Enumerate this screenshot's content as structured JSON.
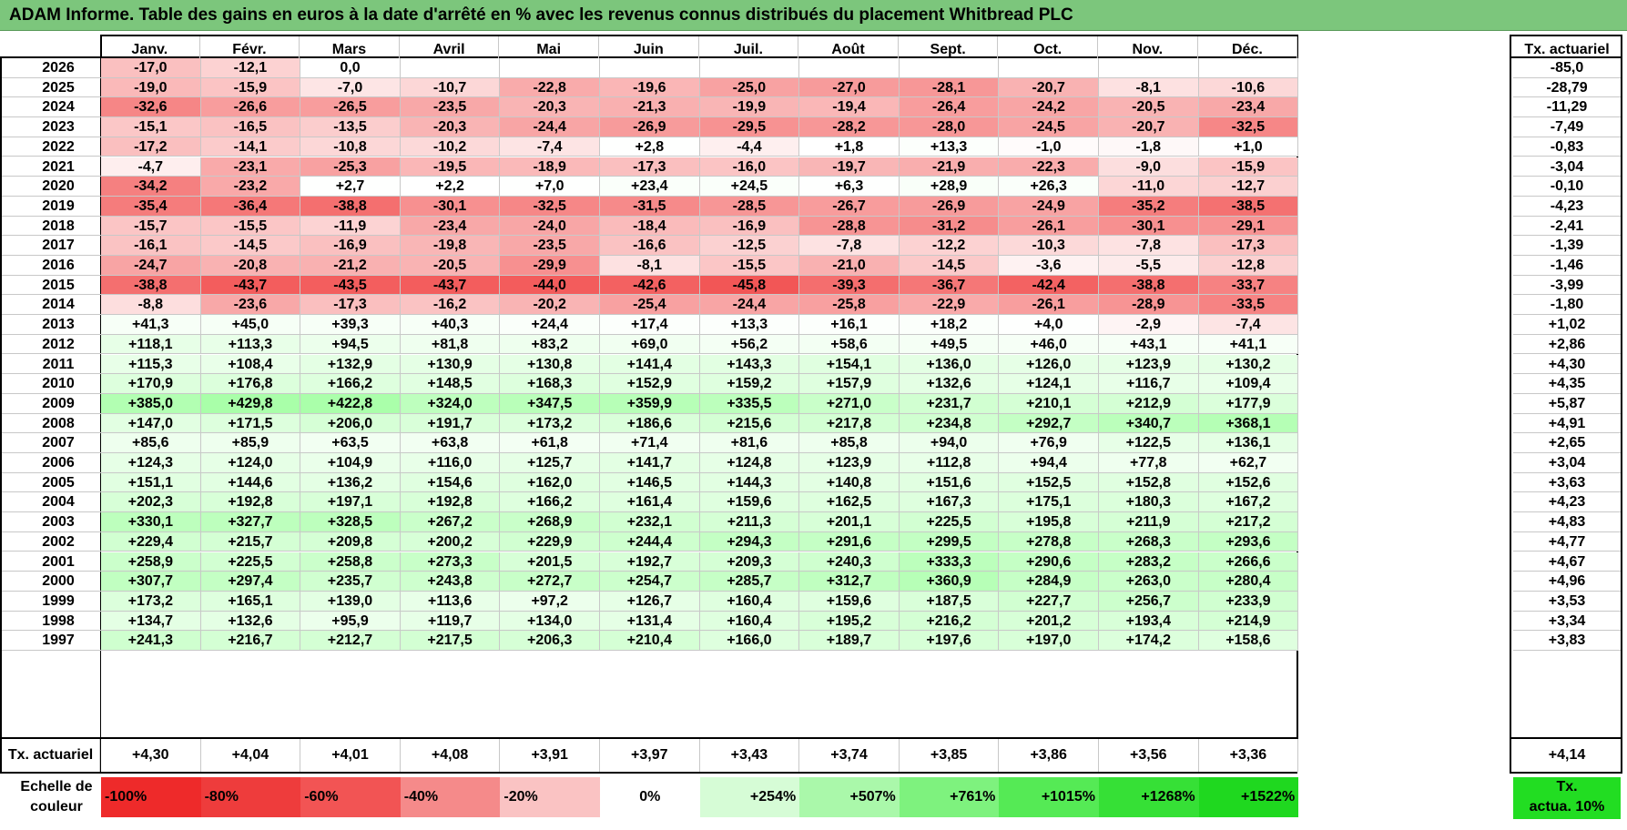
{
  "title": "ADAM Informe. Table des gains en euros à la date d'arrêté en % avec les revenus connus distribués du placement Whitbread PLC",
  "months": [
    "Janv.",
    "Févr.",
    "Mars",
    "Avril",
    "Mai",
    "Juin",
    "Juil.",
    "Août",
    "Sept.",
    "Oct.",
    "Nov.",
    "Déc."
  ],
  "tx_header": "Tx. actuariel",
  "rows": [
    {
      "year": "2026",
      "v": [
        "-17,0",
        "-12,1",
        "0,0",
        "",
        "",
        "",
        "",
        "",
        "",
        "",
        "",
        ""
      ],
      "tx": "-85,0"
    },
    {
      "year": "2025",
      "v": [
        "-19,0",
        "-15,9",
        "-7,0",
        "-10,7",
        "-22,8",
        "-19,6",
        "-25,0",
        "-27,0",
        "-28,1",
        "-20,7",
        "-8,1",
        "-10,6"
      ],
      "tx": "-28,79"
    },
    {
      "year": "2024",
      "v": [
        "-32,6",
        "-26,6",
        "-26,5",
        "-23,5",
        "-20,3",
        "-21,3",
        "-19,9",
        "-19,4",
        "-26,4",
        "-24,2",
        "-20,5",
        "-23,4"
      ],
      "tx": "-11,29"
    },
    {
      "year": "2023",
      "v": [
        "-15,1",
        "-16,5",
        "-13,5",
        "-20,3",
        "-24,4",
        "-26,9",
        "-29,5",
        "-28,2",
        "-28,0",
        "-24,5",
        "-20,7",
        "-32,5"
      ],
      "tx": "-7,49"
    },
    {
      "year": "2022",
      "v": [
        "-17,2",
        "-14,1",
        "-10,8",
        "-10,2",
        "-7,4",
        "+2,8",
        "-4,4",
        "+1,8",
        "+13,3",
        "-1,0",
        "-1,8",
        "+1,0"
      ],
      "tx": "-0,83"
    },
    {
      "year": "2021",
      "v": [
        "-4,7",
        "-23,1",
        "-25,3",
        "-19,5",
        "-18,9",
        "-17,3",
        "-16,0",
        "-19,7",
        "-21,9",
        "-22,3",
        "-9,0",
        "-15,9"
      ],
      "tx": "-3,04"
    },
    {
      "year": "2020",
      "v": [
        "-34,2",
        "-23,2",
        "+2,7",
        "+2,2",
        "+7,0",
        "+23,4",
        "+24,5",
        "+6,3",
        "+28,9",
        "+26,3",
        "-11,0",
        "-12,7"
      ],
      "tx": "-0,10"
    },
    {
      "year": "2019",
      "v": [
        "-35,4",
        "-36,4",
        "-38,8",
        "-30,1",
        "-32,5",
        "-31,5",
        "-28,5",
        "-26,7",
        "-26,9",
        "-24,9",
        "-35,2",
        "-38,5"
      ],
      "tx": "-4,23"
    },
    {
      "year": "2018",
      "v": [
        "-15,7",
        "-15,5",
        "-11,9",
        "-23,4",
        "-24,0",
        "-18,4",
        "-16,9",
        "-28,8",
        "-31,2",
        "-26,1",
        "-30,1",
        "-29,1"
      ],
      "tx": "-2,41"
    },
    {
      "year": "2017",
      "v": [
        "-16,1",
        "-14,5",
        "-16,9",
        "-19,8",
        "-23,5",
        "-16,6",
        "-12,5",
        "-7,8",
        "-12,2",
        "-10,3",
        "-7,8",
        "-17,3"
      ],
      "tx": "-1,39"
    },
    {
      "year": "2016",
      "v": [
        "-24,7",
        "-20,8",
        "-21,2",
        "-20,5",
        "-29,9",
        "-8,1",
        "-15,5",
        "-21,0",
        "-14,5",
        "-3,6",
        "-5,5",
        "-12,8"
      ],
      "tx": "-1,46"
    },
    {
      "year": "2015",
      "v": [
        "-38,8",
        "-43,7",
        "-43,5",
        "-43,7",
        "-44,0",
        "-42,6",
        "-45,8",
        "-39,3",
        "-36,7",
        "-42,4",
        "-38,8",
        "-33,7"
      ],
      "tx": "-3,99"
    },
    {
      "year": "2014",
      "v": [
        "-8,8",
        "-23,6",
        "-17,3",
        "-16,2",
        "-20,2",
        "-25,4",
        "-24,4",
        "-25,8",
        "-22,9",
        "-26,1",
        "-28,9",
        "-33,5"
      ],
      "tx": "-1,80"
    },
    {
      "year": "2013",
      "v": [
        "+41,3",
        "+45,0",
        "+39,3",
        "+40,3",
        "+24,4",
        "+17,4",
        "+13,3",
        "+16,1",
        "+18,2",
        "+4,0",
        "-2,9",
        "-7,4"
      ],
      "tx": "+1,02"
    },
    {
      "year": "2012",
      "v": [
        "+118,1",
        "+113,3",
        "+94,5",
        "+81,8",
        "+83,2",
        "+69,0",
        "+56,2",
        "+58,6",
        "+49,5",
        "+46,0",
        "+43,1",
        "+41,1"
      ],
      "tx": "+2,86"
    },
    {
      "year": "2011",
      "v": [
        "+115,3",
        "+108,4",
        "+132,9",
        "+130,9",
        "+130,8",
        "+141,4",
        "+143,3",
        "+154,1",
        "+136,0",
        "+126,0",
        "+123,9",
        "+130,2"
      ],
      "tx": "+4,30"
    },
    {
      "year": "2010",
      "v": [
        "+170,9",
        "+176,8",
        "+166,2",
        "+148,5",
        "+168,3",
        "+152,9",
        "+159,2",
        "+157,9",
        "+132,6",
        "+124,1",
        "+116,7",
        "+109,4"
      ],
      "tx": "+4,35"
    },
    {
      "year": "2009",
      "v": [
        "+385,0",
        "+429,8",
        "+422,8",
        "+324,0",
        "+347,5",
        "+359,9",
        "+335,5",
        "+271,0",
        "+231,7",
        "+210,1",
        "+212,9",
        "+177,9"
      ],
      "tx": "+5,87"
    },
    {
      "year": "2008",
      "v": [
        "+147,0",
        "+171,5",
        "+206,0",
        "+191,7",
        "+173,2",
        "+186,6",
        "+215,6",
        "+217,8",
        "+234,8",
        "+292,7",
        "+340,7",
        "+368,1"
      ],
      "tx": "+4,91"
    },
    {
      "year": "2007",
      "v": [
        "+85,6",
        "+85,9",
        "+63,5",
        "+63,8",
        "+61,8",
        "+71,4",
        "+81,6",
        "+85,8",
        "+94,0",
        "+76,9",
        "+122,5",
        "+136,1"
      ],
      "tx": "+2,65"
    },
    {
      "year": "2006",
      "v": [
        "+124,3",
        "+124,0",
        "+104,9",
        "+116,0",
        "+125,7",
        "+141,7",
        "+124,8",
        "+123,9",
        "+112,8",
        "+94,4",
        "+77,8",
        "+62,7"
      ],
      "tx": "+3,04"
    },
    {
      "year": "2005",
      "v": [
        "+151,1",
        "+144,6",
        "+136,2",
        "+154,6",
        "+162,0",
        "+146,5",
        "+144,3",
        "+140,8",
        "+151,6",
        "+152,5",
        "+152,8",
        "+152,6"
      ],
      "tx": "+3,63"
    },
    {
      "year": "2004",
      "v": [
        "+202,3",
        "+192,8",
        "+197,1",
        "+192,8",
        "+166,2",
        "+161,4",
        "+159,6",
        "+162,5",
        "+167,3",
        "+175,1",
        "+180,3",
        "+167,2"
      ],
      "tx": "+4,23"
    },
    {
      "year": "2003",
      "v": [
        "+330,1",
        "+327,7",
        "+328,5",
        "+267,2",
        "+268,9",
        "+232,1",
        "+211,3",
        "+201,1",
        "+225,5",
        "+195,8",
        "+211,9",
        "+217,2"
      ],
      "tx": "+4,83"
    },
    {
      "year": "2002",
      "v": [
        "+229,4",
        "+215,7",
        "+209,8",
        "+200,2",
        "+229,9",
        "+244,4",
        "+294,3",
        "+291,6",
        "+299,5",
        "+278,8",
        "+268,3",
        "+293,6"
      ],
      "tx": "+4,77"
    },
    {
      "year": "2001",
      "v": [
        "+258,9",
        "+225,5",
        "+258,8",
        "+273,3",
        "+201,5",
        "+192,7",
        "+209,3",
        "+240,3",
        "+333,3",
        "+290,6",
        "+283,2",
        "+266,6"
      ],
      "tx": "+4,67"
    },
    {
      "year": "2000",
      "v": [
        "+307,7",
        "+297,4",
        "+235,7",
        "+243,8",
        "+272,7",
        "+254,7",
        "+285,7",
        "+312,7",
        "+360,9",
        "+284,9",
        "+263,0",
        "+280,4"
      ],
      "tx": "+4,96"
    },
    {
      "year": "1999",
      "v": [
        "+173,2",
        "+165,1",
        "+139,0",
        "+113,6",
        "+97,2",
        "+126,7",
        "+160,4",
        "+159,6",
        "+187,5",
        "+227,7",
        "+256,7",
        "+233,9"
      ],
      "tx": "+3,53"
    },
    {
      "year": "1998",
      "v": [
        "+134,7",
        "+132,6",
        "+95,9",
        "+119,7",
        "+134,0",
        "+131,4",
        "+160,4",
        "+195,2",
        "+216,2",
        "+201,2",
        "+193,4",
        "+214,9"
      ],
      "tx": "+3,34"
    },
    {
      "year": "1997",
      "v": [
        "+241,3",
        "+216,7",
        "+212,7",
        "+217,5",
        "+206,3",
        "+210,4",
        "+166,0",
        "+189,7",
        "+197,6",
        "+197,0",
        "+174,2",
        "+158,6"
      ],
      "tx": "+3,83"
    }
  ],
  "footer": {
    "label": "Tx. actuariel",
    "values": [
      "+4,30",
      "+4,04",
      "+4,01",
      "+4,08",
      "+3,91",
      "+3,97",
      "+3,43",
      "+3,74",
      "+3,85",
      "+3,86",
      "+3,56",
      "+3,36"
    ],
    "tx": "+4,14"
  },
  "scale": {
    "label_line1": "Echelle de",
    "label_line2": "couleur",
    "items": [
      {
        "text": "-100%",
        "color": "#ee2a2a",
        "kind": "neg"
      },
      {
        "text": "-80%",
        "color": "#ee3c3c",
        "kind": "neg"
      },
      {
        "text": "-60%",
        "color": "#f25454",
        "kind": "neg"
      },
      {
        "text": "-40%",
        "color": "#f58a8a",
        "kind": "neg"
      },
      {
        "text": "-20%",
        "color": "#fac3c3",
        "kind": "neg"
      },
      {
        "text": "0%",
        "color": "#ffffff",
        "kind": "zero"
      },
      {
        "text": "+254%",
        "color": "#d6fcd6",
        "kind": "pos"
      },
      {
        "text": "+507%",
        "color": "#aaf8aa",
        "kind": "pos"
      },
      {
        "text": "+761%",
        "color": "#7ef27e",
        "kind": "pos"
      },
      {
        "text": "+1015%",
        "color": "#55ea55",
        "kind": "pos"
      },
      {
        "text": "+1268%",
        "color": "#36e036",
        "kind": "pos"
      },
      {
        "text": "+1522%",
        "color": "#1fd81f",
        "kind": "pos"
      }
    ],
    "tx_line1": "Tx.",
    "tx_line2": "actua. 10%"
  }
}
